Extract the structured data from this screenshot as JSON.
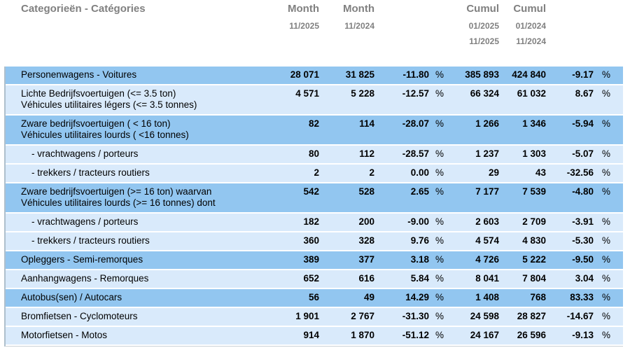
{
  "header": {
    "category_label": "Categorieën - Catégories",
    "month_current": {
      "label": "Month",
      "period": "11/2025"
    },
    "month_previous": {
      "label": "Month",
      "period": "11/2024"
    },
    "cumul_current": {
      "label": "Cumul",
      "from": "01/2025",
      "to": "11/2025"
    },
    "cumul_previous": {
      "label": "Cumul",
      "from": "01/2024",
      "to": "11/2024"
    }
  },
  "labels": {
    "percent": "%"
  },
  "colors": {
    "row_dark": "#92c6f0",
    "row_light": "#d9eafb",
    "header_text": "#808080",
    "body_text": "#000000"
  },
  "rows": [
    {
      "label1": "Personenwagens - Voitures",
      "month_cur": "28 071",
      "month_prev": "31 825",
      "month_pct": "-11.80",
      "cumul_cur": "385 893",
      "cumul_prev": "424 840",
      "cumul_pct": "-9.17"
    },
    {
      "label1": "Lichte Bedrijfsvoertuigen (<= 3.5 ton)",
      "label2": "Véhicules utilitaires légers (<= 3.5 tonnes)",
      "month_cur": "4 571",
      "month_prev": "5 228",
      "month_pct": "-12.57",
      "cumul_cur": "66 324",
      "cumul_prev": "61 032",
      "cumul_pct": "8.67"
    },
    {
      "label1": "Zware bedrijfsvoertuigen ( < 16 ton)",
      "label2": "Véhicules utilitaires lourds ( <16 tonnes)",
      "month_cur": "82",
      "month_prev": "114",
      "month_pct": "-28.07",
      "cumul_cur": "1 266",
      "cumul_prev": "1 346",
      "cumul_pct": "-5.94"
    },
    {
      "label1": "- vrachtwagens / porteurs",
      "month_cur": "80",
      "month_prev": "112",
      "month_pct": "-28.57",
      "cumul_cur": "1 237",
      "cumul_prev": "1 303",
      "cumul_pct": "-5.07"
    },
    {
      "label1": "- trekkers / tracteurs routiers",
      "month_cur": "2",
      "month_prev": "2",
      "month_pct": "0.00",
      "cumul_cur": "29",
      "cumul_prev": "43",
      "cumul_pct": "-32.56"
    },
    {
      "label1": "Zware bedrijfsvoertuigen (>= 16 ton) waarvan",
      "label2": "Véhicules utilitaires lourds (>= 16 tonnes) dont",
      "month_cur": "542",
      "month_prev": "528",
      "month_pct": "2.65",
      "cumul_cur": "7 177",
      "cumul_prev": "7 539",
      "cumul_pct": "-4.80"
    },
    {
      "label1": "- vrachtwagens / porteurs",
      "month_cur": "182",
      "month_prev": "200",
      "month_pct": "-9.00",
      "cumul_cur": "2 603",
      "cumul_prev": "2 709",
      "cumul_pct": "-3.91"
    },
    {
      "label1": "- trekkers / tracteurs routiers",
      "month_cur": "360",
      "month_prev": "328",
      "month_pct": "9.76",
      "cumul_cur": "4 574",
      "cumul_prev": "4 830",
      "cumul_pct": "-5.30"
    },
    {
      "label1": "Opleggers - Semi-remorques",
      "month_cur": "389",
      "month_prev": "377",
      "month_pct": "3.18",
      "cumul_cur": "4 726",
      "cumul_prev": "5 222",
      "cumul_pct": "-9.50"
    },
    {
      "label1": "Aanhangwagens - Remorques",
      "month_cur": "652",
      "month_prev": "616",
      "month_pct": "5.84",
      "cumul_cur": "8 041",
      "cumul_prev": "7 804",
      "cumul_pct": "3.04"
    },
    {
      "label1": "Autobus(sen) / Autocars",
      "month_cur": "56",
      "month_prev": "49",
      "month_pct": "14.29",
      "cumul_cur": "1 408",
      "cumul_prev": "768",
      "cumul_pct": "83.33"
    },
    {
      "label1": "Bromfietsen - Cyclomoteurs",
      "month_cur": "1 901",
      "month_prev": "2 767",
      "month_pct": "-31.30",
      "cumul_cur": "24 598",
      "cumul_prev": "28 827",
      "cumul_pct": "-14.67"
    },
    {
      "label1": "Motorfietsen - Motos",
      "month_cur": "914",
      "month_prev": "1 870",
      "month_pct": "-51.12",
      "cumul_cur": "24 167",
      "cumul_prev": "26 596",
      "cumul_pct": "-9.13"
    }
  ]
}
